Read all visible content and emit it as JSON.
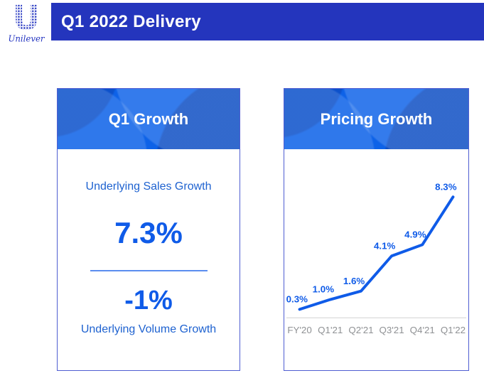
{
  "header": {
    "logo_text": "Unilever",
    "title": "Q1 2022 Delivery"
  },
  "cards": {
    "q1_growth": {
      "title": "Q1 Growth",
      "sales_label": "Underlying Sales Growth",
      "sales_value": "7.3%",
      "volume_value": "-1%",
      "volume_label": "Underlying Volume Growth"
    },
    "pricing_growth": {
      "title": "Pricing Growth"
    }
  },
  "chart_data": {
    "type": "line",
    "title": "Pricing Growth",
    "categories": [
      "FY'20",
      "Q1'21",
      "Q2'21",
      "Q3'21",
      "Q4'21",
      "Q1'22"
    ],
    "values": [
      0.3,
      1.0,
      1.6,
      4.1,
      4.9,
      8.3
    ],
    "point_labels": [
      "0.3%",
      "1.0%",
      "1.6%",
      "4.1%",
      "4.9%",
      "8.3%"
    ],
    "xlabel": "",
    "ylabel": "",
    "ylim": [
      0,
      9
    ],
    "grid": false,
    "legend": false,
    "line_color": "#0f5be8",
    "label_color": "#0f5be8",
    "axis_line_color": "#d2d2d2",
    "tick_label_color": "#8f9194"
  },
  "colors": {
    "banner": "#2435bd",
    "logo": "#2334c0",
    "card_header": "#0d62e8",
    "card_border": "#4f5ed2",
    "accent_blue": "#0f5be8"
  }
}
